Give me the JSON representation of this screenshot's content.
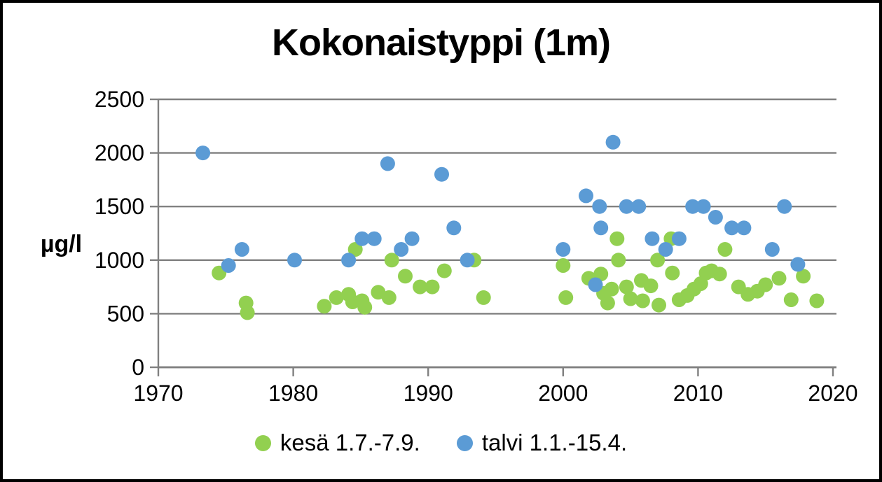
{
  "chart_data": {
    "type": "scatter",
    "title": "Kokonaistyppi (1m)",
    "ylabel": "µg/l",
    "xlabel": "",
    "x_axis": {
      "min": 1970,
      "max": 2020,
      "ticks": [
        1970,
        1980,
        1990,
        2000,
        2010,
        2020
      ]
    },
    "y_axis": {
      "min": 0,
      "max": 2500,
      "ticks": [
        0,
        500,
        1000,
        1500,
        2000,
        2500
      ]
    },
    "grid": true,
    "legend_position": "bottom",
    "colors": {
      "grid": "#808080",
      "axis": "#808080",
      "text": "#000000",
      "border": "#000000",
      "background": "#ffffff"
    },
    "series": [
      {
        "name": "kesä 1.7.-7.9.",
        "color": "#92D050",
        "points": [
          [
            1974.5,
            880
          ],
          [
            1976.5,
            600
          ],
          [
            1976.6,
            510
          ],
          [
            1982.3,
            570
          ],
          [
            1983.2,
            650
          ],
          [
            1984.1,
            680
          ],
          [
            1984.4,
            610
          ],
          [
            1984.6,
            1100
          ],
          [
            1985.1,
            620
          ],
          [
            1985.3,
            560
          ],
          [
            1986.3,
            700
          ],
          [
            1987.1,
            650
          ],
          [
            1987.3,
            1000
          ],
          [
            1988.3,
            850
          ],
          [
            1989.4,
            750
          ],
          [
            1990.3,
            750
          ],
          [
            1991.2,
            900
          ],
          [
            1993.4,
            1000
          ],
          [
            1994.1,
            650
          ],
          [
            2000.0,
            950
          ],
          [
            2000.2,
            650
          ],
          [
            2001.9,
            830
          ],
          [
            2002.8,
            870
          ],
          [
            2003.0,
            690
          ],
          [
            2003.3,
            600
          ],
          [
            2003.6,
            730
          ],
          [
            2004.0,
            1200
          ],
          [
            2004.1,
            1000
          ],
          [
            2004.7,
            750
          ],
          [
            2005.0,
            640
          ],
          [
            2005.8,
            810
          ],
          [
            2005.9,
            620
          ],
          [
            2006.5,
            760
          ],
          [
            2007.0,
            1000
          ],
          [
            2007.1,
            580
          ],
          [
            2008.0,
            1200
          ],
          [
            2008.1,
            880
          ],
          [
            2008.6,
            630
          ],
          [
            2009.2,
            670
          ],
          [
            2009.7,
            730
          ],
          [
            2010.2,
            780
          ],
          [
            2010.6,
            880
          ],
          [
            2011.0,
            900
          ],
          [
            2011.6,
            870
          ],
          [
            2012.0,
            1100
          ],
          [
            2013.0,
            750
          ],
          [
            2013.7,
            680
          ],
          [
            2014.4,
            710
          ],
          [
            2015.0,
            770
          ],
          [
            2016.0,
            830
          ],
          [
            2016.9,
            630
          ],
          [
            2017.8,
            850
          ],
          [
            2018.8,
            620
          ]
        ]
      },
      {
        "name": "talvi 1.1.-15.4.",
        "color": "#5B9BD5",
        "points": [
          [
            1973.3,
            2000
          ],
          [
            1975.2,
            950
          ],
          [
            1976.2,
            1100
          ],
          [
            1980.1,
            1000
          ],
          [
            1984.1,
            1000
          ],
          [
            1985.1,
            1200
          ],
          [
            1986.0,
            1200
          ],
          [
            1987.0,
            1900
          ],
          [
            1988.0,
            1100
          ],
          [
            1988.8,
            1200
          ],
          [
            1991.0,
            1800
          ],
          [
            1991.9,
            1300
          ],
          [
            1992.9,
            1000
          ],
          [
            2000.0,
            1100
          ],
          [
            2001.7,
            1600
          ],
          [
            2002.4,
            770
          ],
          [
            2002.7,
            1500
          ],
          [
            2002.8,
            1300
          ],
          [
            2003.7,
            2100
          ],
          [
            2004.7,
            1500
          ],
          [
            2005.6,
            1500
          ],
          [
            2006.6,
            1200
          ],
          [
            2007.6,
            1100
          ],
          [
            2008.6,
            1200
          ],
          [
            2009.6,
            1500
          ],
          [
            2010.4,
            1500
          ],
          [
            2011.3,
            1400
          ],
          [
            2012.5,
            1300
          ],
          [
            2013.4,
            1300
          ],
          [
            2015.5,
            1100
          ],
          [
            2016.4,
            1500
          ],
          [
            2017.4,
            960
          ]
        ]
      }
    ]
  }
}
